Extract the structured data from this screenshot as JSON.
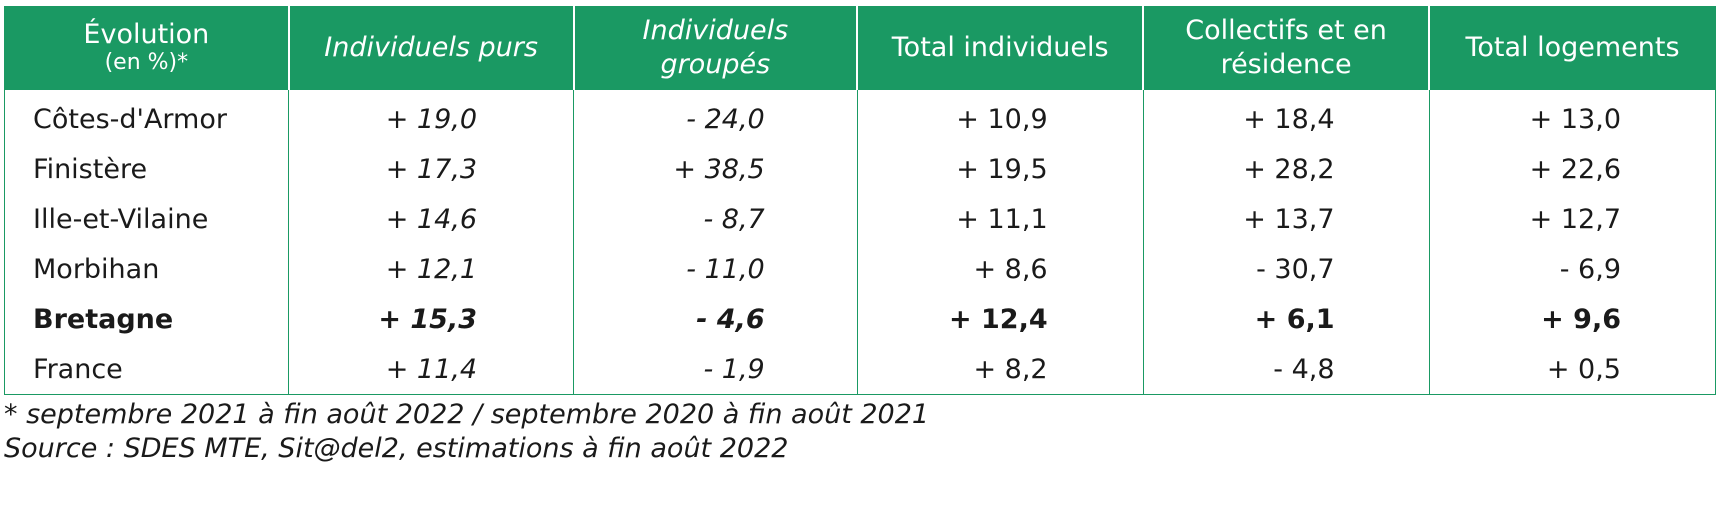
{
  "table": {
    "headers": [
      {
        "line1": "Évolution",
        "line2": "(en %)*"
      },
      {
        "label": "Individuels purs"
      },
      {
        "line1": "Individuels",
        "line2": "groupés"
      },
      {
        "label": "Total individuels"
      },
      {
        "line1": "Collectifs et en",
        "line2": "résidence"
      },
      {
        "label": "Total logements"
      }
    ],
    "rows": [
      {
        "region": "Côtes-d'Armor",
        "values": [
          "+ 19,0",
          "- 24,0",
          "+ 10,9",
          "+ 18,4",
          "+ 13,0"
        ]
      },
      {
        "region": "Finistère",
        "values": [
          "+ 17,3",
          "+ 38,5",
          "+ 19,5",
          "+ 28,2",
          "+ 22,6"
        ]
      },
      {
        "region": "Ille-et-Vilaine",
        "values": [
          "+ 14,6",
          "- 8,7",
          "+ 11,1",
          "+ 13,7",
          "+ 12,7"
        ]
      },
      {
        "region": "Morbihan",
        "values": [
          "+ 12,1",
          "- 11,0",
          "+ 8,6",
          "- 30,7",
          "- 6,9"
        ]
      },
      {
        "region": "Bretagne",
        "values": [
          "+ 15,3",
          "- 4,6",
          "+ 12,4",
          "+ 6,1",
          "+ 9,6"
        ]
      },
      {
        "region": "France",
        "values": [
          "+ 11,4",
          "- 1,9",
          "+ 8,2",
          "- 4,8",
          "+ 0,5"
        ]
      }
    ]
  },
  "notes": {
    "period": "* septembre 2021 à fin août 2022 / septembre 2020 à fin août 2021",
    "source": "Source : SDES MTE, Sit@del2, estimations à fin août 2022"
  },
  "colors": {
    "header_background": "#1a9963",
    "header_text": "#ffffff",
    "rule": "#1a9963"
  }
}
